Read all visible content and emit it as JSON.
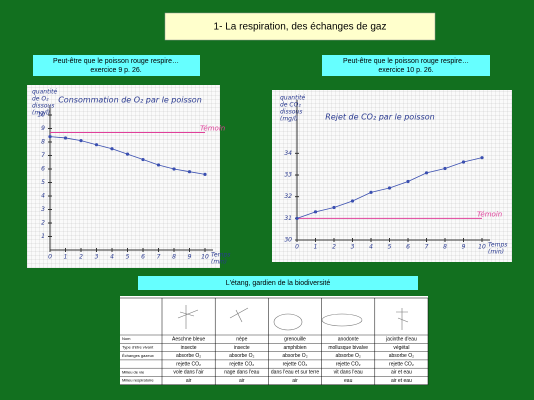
{
  "header": {
    "title": "1- La respiration, des échanges de gaz"
  },
  "captions": [
    {
      "line1": "Peut-être que le poisson rouge respire…",
      "line2": "exercice 9 p. 26."
    },
    {
      "line1": "Peut-être que le poisson rouge respire…",
      "line2": "exercice 10 p. 26."
    }
  ],
  "chart_data": [
    {
      "type": "line",
      "title": "Consommation de O₂ par le poisson",
      "y_label": [
        "quantité",
        "de O₂",
        "dissous",
        "(mg/l)"
      ],
      "x_label": [
        "Temps",
        "(min)"
      ],
      "x": [
        0,
        1,
        2,
        3,
        4,
        5,
        6,
        7,
        8,
        9,
        10
      ],
      "series": [
        {
          "color": "#3a4fb0",
          "values": [
            8.4,
            8.3,
            8.1,
            7.8,
            7.5,
            7.1,
            6.7,
            6.3,
            6.0,
            5.8,
            5.6
          ]
        }
      ],
      "reference": {
        "label": "Témoin",
        "value": 8.7,
        "color": "#e0409a"
      },
      "xlim": [
        0,
        10
      ],
      "ylim": [
        0,
        10
      ],
      "xticks": [
        0,
        1,
        2,
        3,
        4,
        5,
        6,
        7,
        8,
        9,
        10
      ],
      "yticks": [
        1,
        2,
        3,
        4,
        5,
        6,
        7,
        8,
        9,
        10
      ]
    },
    {
      "type": "line",
      "title": "Rejet de CO₂ par le poisson",
      "y_label": [
        "quantité",
        "de CO₂",
        "dissous",
        "(mg/l)"
      ],
      "x_label": [
        "Temps",
        "(min)"
      ],
      "x": [
        0,
        1,
        2,
        3,
        4,
        5,
        6,
        7,
        8,
        9,
        10
      ],
      "series": [
        {
          "color": "#3a4fb0",
          "values": [
            31.0,
            31.3,
            31.5,
            31.8,
            32.2,
            32.4,
            32.7,
            33.1,
            33.3,
            33.6,
            33.8
          ]
        }
      ],
      "reference": {
        "label": "Témoin",
        "value": 31,
        "color": "#e0409a"
      },
      "xlim": [
        0,
        10
      ],
      "ylim": [
        30,
        36
      ],
      "xticks": [
        0,
        1,
        2,
        3,
        4,
        5,
        6,
        7,
        8,
        9,
        10
      ],
      "yticks": [
        30,
        31,
        32,
        33,
        34
      ]
    }
  ],
  "banner": "L'étang, gardien de la biodiversité",
  "table": {
    "rows": [
      [
        "Nom",
        "Aeschne bleue",
        "nèpe",
        "grenouille",
        "anodonte",
        "jacinthe d'eau"
      ],
      [
        "Type d'être vivant",
        "insecte",
        "insecte",
        "amphibien",
        "mollusque bivalve",
        "végétal"
      ],
      [
        "Échanges gazeux",
        "absorbe O₂",
        "absorbe O₂",
        "absorbe O₂",
        "absorbe O₂",
        "absorbe O₂"
      ],
      [
        "",
        "rejette CO₂",
        "rejette CO₂",
        "rejette CO₂",
        "rejette CO₂",
        "rejette CO₂"
      ],
      [
        "Milieu de vie",
        "vole dans l'air",
        "nage dans l'eau",
        "dans l'eau et sur terre",
        "vit dans l'eau",
        "air et eau"
      ],
      [
        "Milieu respiratoire",
        "air",
        "air",
        "air",
        "eau",
        "air et eau"
      ]
    ]
  }
}
